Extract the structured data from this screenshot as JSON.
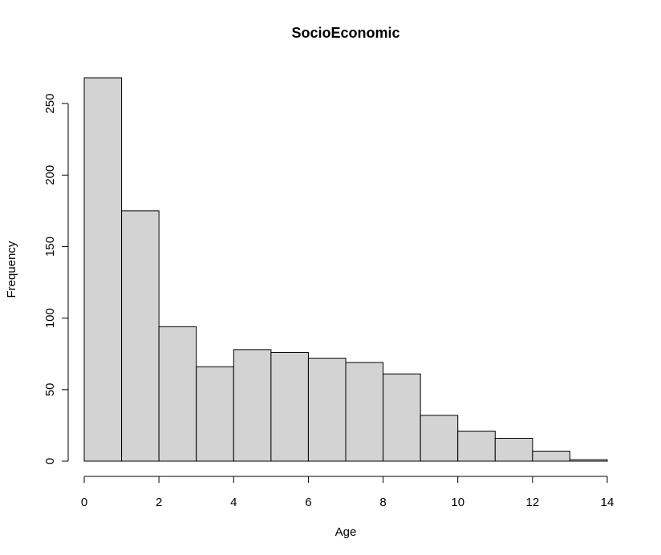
{
  "chart_data": {
    "type": "bar",
    "title": "SocioEconomic",
    "xlabel": "Age",
    "ylabel": "Frequency",
    "bin_edges": [
      0,
      1,
      2,
      3,
      4,
      5,
      6,
      7,
      8,
      9,
      10,
      11,
      12,
      13,
      14
    ],
    "values": [
      268,
      175,
      94,
      66,
      78,
      76,
      72,
      69,
      61,
      32,
      21,
      16,
      7,
      1
    ],
    "xlim": [
      0,
      14
    ],
    "ylim": [
      0,
      268
    ],
    "x_ticks": [
      0,
      2,
      4,
      6,
      8,
      10,
      12,
      14
    ],
    "y_ticks": [
      0,
      50,
      100,
      150,
      200,
      250
    ],
    "grid": false,
    "colors": {
      "bar_fill": "#d3d3d3",
      "bar_stroke": "#000000"
    }
  }
}
